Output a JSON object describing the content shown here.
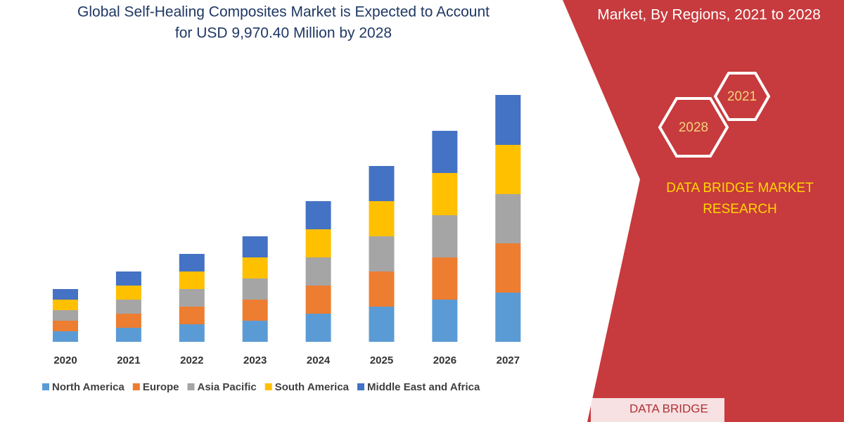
{
  "chart_data": {
    "type": "stacked_bar",
    "title": [
      "Global Self-Healing Composites Market is Expected to Account",
      "for USD 9,970.40 Million by 2028"
    ],
    "categories": [
      "2020",
      "2021",
      "2022",
      "2023",
      "2024",
      "2025",
      "2026",
      "2027"
    ],
    "series": [
      {
        "name": "North America",
        "color": "#5b9bd5",
        "values": [
          15,
          20,
          25,
          30,
          40,
          50,
          60,
          70
        ]
      },
      {
        "name": "Europe",
        "color": "#ed7d31",
        "values": [
          15,
          20,
          25,
          30,
          40,
          50,
          60,
          70
        ]
      },
      {
        "name": "Asia Pacific",
        "color": "#a5a5a5",
        "values": [
          15,
          20,
          25,
          30,
          40,
          50,
          60,
          70
        ]
      },
      {
        "name": "South America",
        "color": "#ffc000",
        "values": [
          15,
          20,
          25,
          30,
          40,
          50,
          60,
          70
        ]
      },
      {
        "name": "Middle East and Africa",
        "color": "#4472c4",
        "values": [
          15,
          20,
          25,
          30,
          40,
          50,
          60,
          71
        ]
      }
    ],
    "legend": "bottom"
  },
  "side_panel": {
    "subtitle": "Market, By Regions, 2021 to 2028",
    "hexagons": [
      "2021",
      "2028"
    ],
    "brand": [
      "DATA BRIDGE MARKET",
      "RESEARCH"
    ],
    "logo": "DATA BRIDGE"
  }
}
